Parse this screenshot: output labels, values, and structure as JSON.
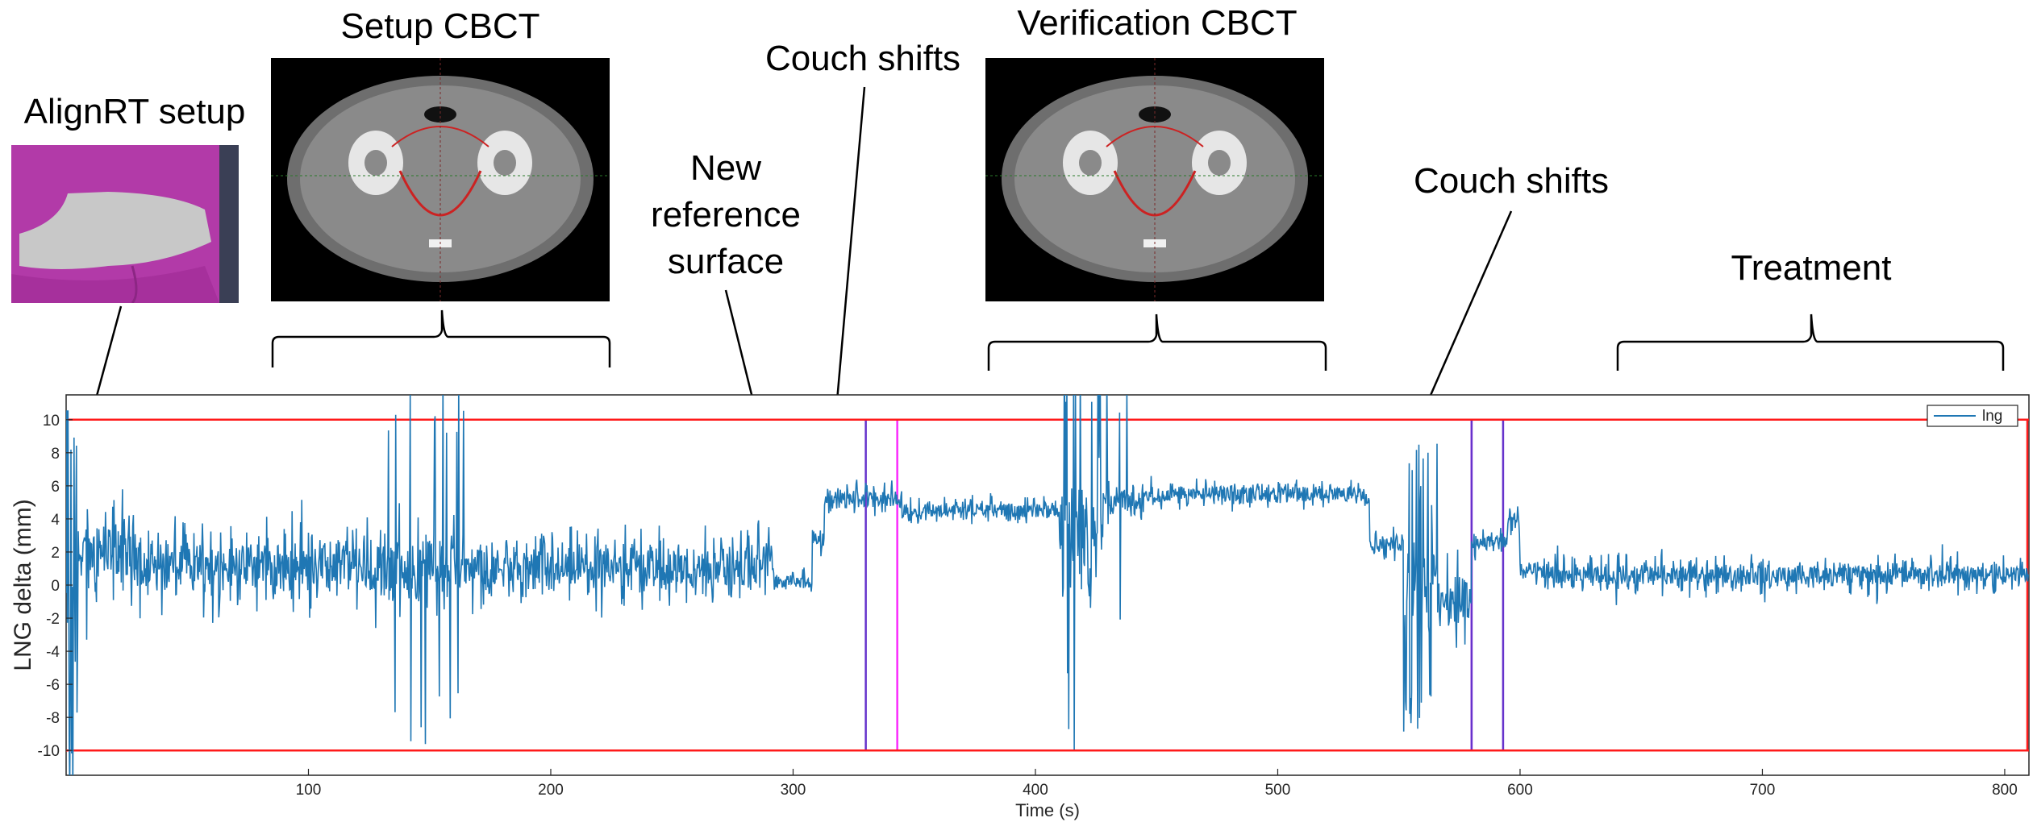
{
  "annotations": {
    "alignrt": "AlignRT setup",
    "setup_cbct": "Setup CBCT",
    "couch_shifts_1": "Couch shifts",
    "new_ref": [
      "New",
      "reference",
      "surface"
    ],
    "verification_cbct": "Verification CBCT",
    "couch_shifts_2": "Couch shifts",
    "treatment": "Treatment"
  },
  "colors": {
    "signal": "#1f77b4",
    "threshold": "#ff1a1a",
    "window": "#ff33ff",
    "window_edge": "#6633cc",
    "skin": "#b23aa8",
    "surface": "#c8c8c8"
  },
  "chart_data": {
    "type": "line",
    "xlabel": "Time (s)",
    "ylabel": "LNG delta (mm)",
    "xlim": [
      0,
      810
    ],
    "ylim": [
      -11.5,
      11.5
    ],
    "xticks": [
      100,
      200,
      300,
      400,
      500,
      600,
      700,
      800
    ],
    "yticks": [
      -10,
      -8,
      -6,
      -4,
      -2,
      0,
      2,
      4,
      6,
      8,
      10
    ],
    "legend": {
      "entries": [
        "lng"
      ],
      "position": "top-right"
    },
    "threshold_lines": [
      10,
      -10
    ],
    "gating_windows": [
      {
        "x0": 330,
        "x1": 343,
        "y0": -10,
        "y1": 10
      },
      {
        "x0": 343,
        "x1": 580,
        "y0": -10,
        "y1": 10
      },
      {
        "x0": 580,
        "x1": 593,
        "y0": -10,
        "y1": 10
      }
    ],
    "series": [
      {
        "name": "lng",
        "segments": [
          {
            "x0": 0,
            "x1": 5,
            "base": 0,
            "noise": 12,
            "spike_p": 0.3,
            "spike_amp": 14
          },
          {
            "x0": 5,
            "x1": 30,
            "base": 2,
            "noise": 3.0,
            "spike_p": 0.04,
            "spike_amp": 6
          },
          {
            "x0": 30,
            "x1": 130,
            "base": 1.2,
            "noise": 2.4,
            "spike_p": 0.015,
            "spike_amp": 4
          },
          {
            "x0": 130,
            "x1": 165,
            "base": 1.2,
            "noise": 3.0,
            "spike_p": 0.12,
            "spike_amp": 12
          },
          {
            "x0": 165,
            "x1": 285,
            "base": 1.0,
            "noise": 2.2,
            "spike_p": 0.01,
            "spike_amp": 3
          },
          {
            "x0": 285,
            "x1": 292,
            "base": 1.5,
            "noise": 2.0,
            "spike_p": 0.0,
            "spike_amp": 0
          },
          {
            "x0": 292,
            "x1": 308,
            "base": 0.2,
            "noise": 0.7,
            "spike_p": 0.0,
            "spike_amp": 0
          },
          {
            "x0": 308,
            "x1": 313,
            "base": 2.8,
            "noise": 1.0,
            "spike_p": 0.0,
            "spike_amp": 0
          },
          {
            "x0": 313,
            "x1": 345,
            "base": 5.2,
            "noise": 0.9,
            "spike_p": 0.0,
            "spike_amp": 0
          },
          {
            "x0": 345,
            "x1": 410,
            "base": 4.5,
            "noise": 0.8,
            "spike_p": 0.0,
            "spike_amp": 0
          },
          {
            "x0": 410,
            "x1": 428,
            "base": 3.0,
            "noise": 4.0,
            "spike_p": 0.2,
            "spike_amp": 13
          },
          {
            "x0": 428,
            "x1": 445,
            "base": 5.0,
            "noise": 1.2,
            "spike_p": 0.05,
            "spike_amp": 8
          },
          {
            "x0": 445,
            "x1": 538,
            "base": 5.5,
            "noise": 0.8,
            "spike_p": 0.0,
            "spike_amp": 0
          },
          {
            "x0": 538,
            "x1": 552,
            "base": 2.5,
            "noise": 0.8,
            "spike_p": 0.0,
            "spike_amp": 0
          },
          {
            "x0": 552,
            "x1": 566,
            "base": 0.5,
            "noise": 5.0,
            "spike_p": 0.2,
            "spike_amp": 10
          },
          {
            "x0": 566,
            "x1": 580,
            "base": -1.0,
            "noise": 2.2,
            "spike_p": 0.03,
            "spike_amp": 4
          },
          {
            "x0": 580,
            "x1": 595,
            "base": 2.6,
            "noise": 0.8,
            "spike_p": 0.0,
            "spike_amp": 0
          },
          {
            "x0": 595,
            "x1": 600,
            "base": 3.8,
            "noise": 1.2,
            "spike_p": 0.0,
            "spike_amp": 0
          },
          {
            "x0": 600,
            "x1": 610,
            "base": 0.8,
            "noise": 0.8,
            "spike_p": 0.0,
            "spike_amp": 0
          },
          {
            "x0": 610,
            "x1": 810,
            "base": 0.6,
            "noise": 1.1,
            "spike_p": 0.005,
            "spike_amp": 2
          }
        ]
      }
    ]
  }
}
